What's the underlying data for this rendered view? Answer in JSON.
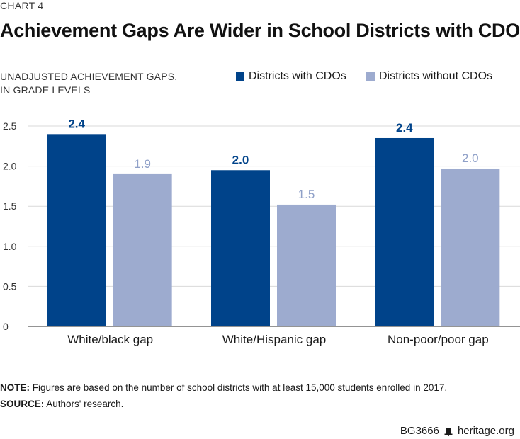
{
  "chart_label": "CHART 4",
  "footer": {
    "code": "BG3666",
    "site": "heritage.org",
    "icon": "bell-icon"
  },
  "note": {
    "lead": "NOTE:",
    "text": "Figures are based on the number of school districts with at least 15,000 students enrolled in 2017."
  },
  "source": {
    "lead": "SOURCE:",
    "text": "Authors' research."
  },
  "colors": {
    "with": "#00438a",
    "without": "#9dabcf",
    "grid": "#d9d9d9",
    "axis": "#555555"
  },
  "chart_data": {
    "type": "bar",
    "title": "Achievement Gaps Are Wider in School Districts with CDOs",
    "ylabel_lines": [
      "UNADJUSTED ACHIEVEMENT GAPS,",
      "IN GRADE LEVELS"
    ],
    "xlabel": "",
    "categories": [
      "White/black gap",
      "White/Hispanic gap",
      "Non-poor/poor gap"
    ],
    "series": [
      {
        "name": "Districts with CDOs",
        "values": [
          2.4,
          1.95,
          2.35
        ],
        "labels": [
          "2.4",
          "2.0",
          "2.4"
        ]
      },
      {
        "name": "Districts without CDOs",
        "values": [
          1.9,
          1.52,
          1.97
        ],
        "labels": [
          "1.9",
          "1.5",
          "2.0"
        ]
      }
    ],
    "ylim": [
      0,
      2.5
    ],
    "yticks": [
      0,
      0.5,
      1.0,
      1.5,
      2.0,
      2.5
    ],
    "ytick_labels": [
      "0",
      "0.5",
      "1.0",
      "1.5",
      "2.0",
      "2.5"
    ],
    "grid": true,
    "legend_position": "top-right"
  }
}
